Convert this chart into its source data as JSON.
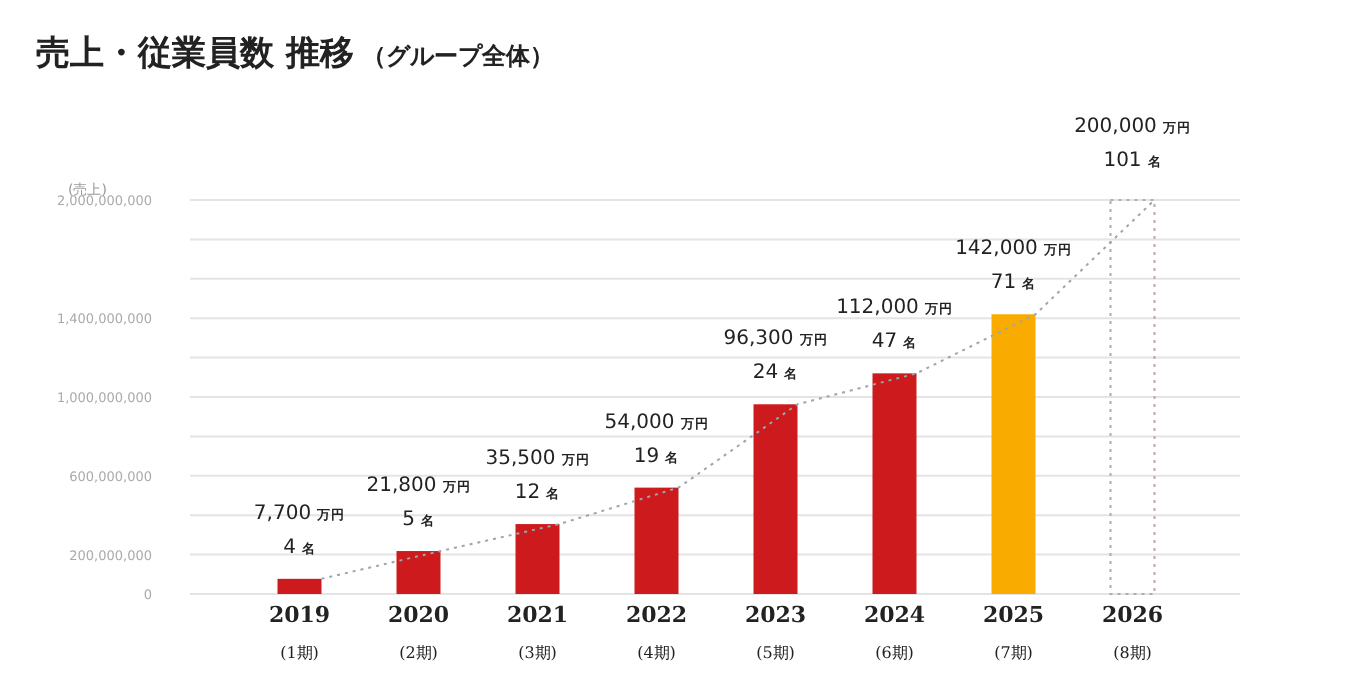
{
  "chart_data": {
    "type": "bar",
    "title": "売上・従業員数 推移",
    "subtitle": "（グループ全体）",
    "ylabel": "(売上)",
    "categories": [
      "2019$_{(1期)}$",
      "2020$_{(2期)}$",
      "2021$_{(3期)}$",
      "2022$_{(4期)}$",
      "2023$_{(5期)}$",
      "2024$_{(6期)}$",
      "2025$_{(7期)}$",
      "2026$_{(8期)}$"
    ],
    "series": [
      {
        "colors": [
          "#cc1a1d",
          "#cc1a1d",
          "#cc1a1d",
          "#cc1a1d",
          "#cc1a1d",
          "#cc1a1d",
          "#f9ab00",
          null
        ],
        "values": [
          7700,
          21800,
          35500,
          54000,
          96300,
          112000,
          142000,
          null
        ],
        "value_labels": [
          "7,700 万円",
          "21,800 万円",
          "35,500 万円",
          "54,000 万円",
          "96,300 万円",
          "112,000 万円",
          "142,000 万円",
          null
        ]
      },
      {
        "color": "#b8a8a8",
        "line_style": "dotted",
        "values": [
          null,
          null,
          null,
          null,
          null,
          null,
          null,
          200000
        ],
        "value_labels": [
          null,
          null,
          null,
          null,
          null,
          null,
          null,
          "200,000 万円"
        ]
      },
      {
        "type": "line",
        "axis": "y2",
        "color": "#9aa6b0",
        "line_style": "dotted",
        "values": [
          77000000,
          218000000,
          355000000,
          540000000,
          963000000,
          1120000000,
          1420000000,
          2000000000
        ]
      }
    ],
    "ylim": [
      0,
      200000
    ],
    "y2lim": [
      0,
      2000000000
    ],
    "y2ticks": [
      0,
      {
        "value": 200000000,
        "label": "200,000,000"
      },
      {
        "value": 400000000,
        "label": null
      },
      {
        "value": 600000000,
        "label": "600,000,000"
      },
      {
        "value": 800000000,
        "label": null
      },
      {
        "value": 1000000000,
        "label": "1,000,000,000"
      },
      {
        "value": 1200000000,
        "label": null
      },
      {
        "value": 1400000000,
        "label": "1,400,000,000"
      },
      {
        "value": 1600000000,
        "label": null
      },
      {
        "value": 1800000000,
        "label": null
      },
      {
        "value": 2000000000,
        "label": "2,000,000,000"
      }
    ],
    "grid": "y",
    "annotations": [
      {
        "text": "4 名",
        "x": "2019$_{(1期)}$",
        "y": 7700
      },
      {
        "text": "5 名",
        "x": "2020$_{(2期)}$",
        "y": 21800
      },
      {
        "text": "12 名",
        "x": "2021$_{(3期)}$",
        "y": 35500
      },
      {
        "text": "19 名",
        "x": "2022$_{(4期)}$",
        "y": 54000
      },
      {
        "text": "24 名",
        "x": "2023$_{(5期)}$",
        "y": 96300
      },
      {
        "text": "47 名",
        "x": "2024$_{(6期)}$",
        "y": 112000
      },
      {
        "text": "71 名",
        "x": "2025$_{(7期)}$",
        "y": 142000
      },
      {
        "text": "101 名",
        "x": "2026$_{(8期)}$",
        "y": 200000
      }
    ]
  }
}
